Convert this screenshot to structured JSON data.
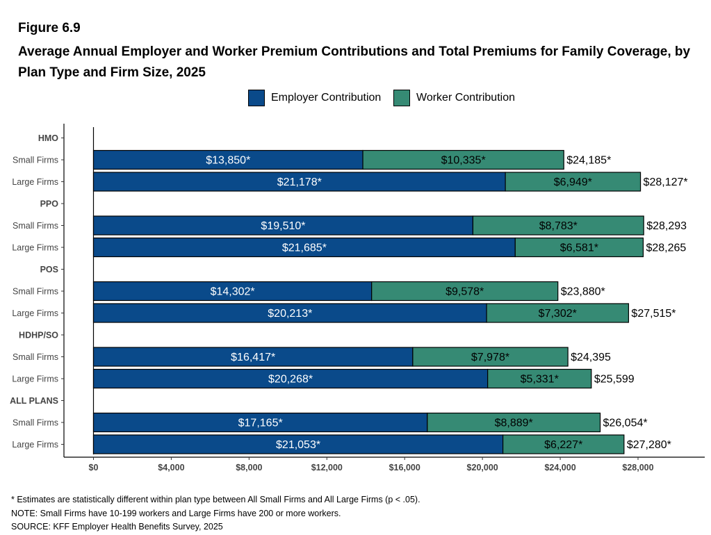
{
  "figure_label": "Figure 6.9",
  "title": "Average Annual Employer and Worker Premium Contributions and Total Premiums for Family Coverage, by Plan Type and Firm Size, 2025",
  "legend": [
    {
      "name": "Employer Contribution",
      "color": "#0a4a8a"
    },
    {
      "name": "Worker Contribution",
      "color": "#368a74"
    }
  ],
  "notes": [
    "* Estimates are statistically different within plan type between All Small Firms and All Large Firms (p < .05).",
    "NOTE: Small Firms have 10-199 workers and Large Firms have 200 or more workers.",
    "SOURCE: KFF Employer Health Benefits Survey, 2025"
  ],
  "chart_data": {
    "type": "bar",
    "orientation": "horizontal",
    "stacked": true,
    "xlim": [
      0,
      30000
    ],
    "xticks": [
      "$0",
      "$4,000",
      "$8,000",
      "$12,000",
      "$16,000",
      "$20,000",
      "$24,000",
      "$28,000"
    ],
    "xtick_values": [
      0,
      4000,
      8000,
      12000,
      16000,
      20000,
      24000,
      28000
    ],
    "rows": [
      {
        "label": "HMO",
        "header": true
      },
      {
        "label": "Small Firms",
        "employer": 13850,
        "worker": 10335,
        "total": 24185,
        "employer_label": "$13,850*",
        "worker_label": "$10,335*",
        "total_label": "$24,185*"
      },
      {
        "label": "Large Firms",
        "employer": 21178,
        "worker": 6949,
        "total": 28127,
        "employer_label": "$21,178*",
        "worker_label": "$6,949*",
        "total_label": "$28,127*"
      },
      {
        "label": "PPO",
        "header": true
      },
      {
        "label": "Small Firms",
        "employer": 19510,
        "worker": 8783,
        "total": 28293,
        "employer_label": "$19,510*",
        "worker_label": "$8,783*",
        "total_label": "$28,293"
      },
      {
        "label": "Large Firms",
        "employer": 21685,
        "worker": 6581,
        "total": 28265,
        "employer_label": "$21,685*",
        "worker_label": "$6,581*",
        "total_label": "$28,265"
      },
      {
        "label": "POS",
        "header": true
      },
      {
        "label": "Small Firms",
        "employer": 14302,
        "worker": 9578,
        "total": 23880,
        "employer_label": "$14,302*",
        "worker_label": "$9,578*",
        "total_label": "$23,880*"
      },
      {
        "label": "Large Firms",
        "employer": 20213,
        "worker": 7302,
        "total": 27515,
        "employer_label": "$20,213*",
        "worker_label": "$7,302*",
        "total_label": "$27,515*"
      },
      {
        "label": "HDHP/SO",
        "header": true
      },
      {
        "label": "Small Firms",
        "employer": 16417,
        "worker": 7978,
        "total": 24395,
        "employer_label": "$16,417*",
        "worker_label": "$7,978*",
        "total_label": "$24,395"
      },
      {
        "label": "Large Firms",
        "employer": 20268,
        "worker": 5331,
        "total": 25599,
        "employer_label": "$20,268*",
        "worker_label": "$5,331*",
        "total_label": "$25,599"
      },
      {
        "label": "ALL PLANS",
        "header": true
      },
      {
        "label": "Small Firms",
        "employer": 17165,
        "worker": 8889,
        "total": 26054,
        "employer_label": "$17,165*",
        "worker_label": "$8,889*",
        "total_label": "$26,054*"
      },
      {
        "label": "Large Firms",
        "employer": 21053,
        "worker": 6227,
        "total": 27280,
        "employer_label": "$21,053*",
        "worker_label": "$6,227*",
        "total_label": "$27,280*"
      }
    ]
  }
}
